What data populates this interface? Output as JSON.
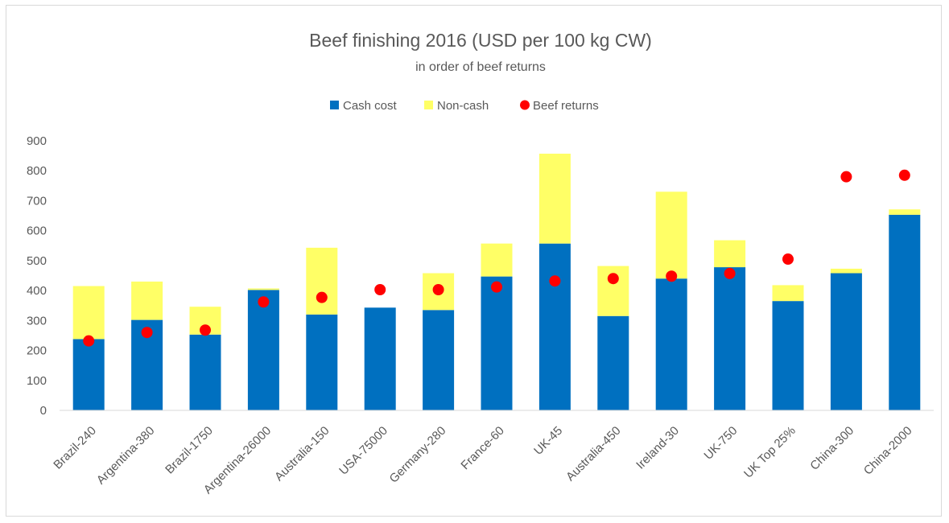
{
  "chart_data": {
    "type": "bar",
    "stacked": true,
    "title": "Beef finishing 2016 (USD per 100 kg CW)",
    "subtitle": "in order of beef returns",
    "categories": [
      "Brazil-240",
      "Argentina-380",
      "Brazil-1750",
      "Argentina-26000",
      "Australia-150",
      "USA-75000",
      "Germany-280",
      "France-60",
      "UK-45",
      "Australia-450",
      "Ireland-30",
      "UK-750",
      "UK Top 25%",
      "China-300",
      "China-2000"
    ],
    "series": [
      {
        "name": "Cash cost",
        "type": "bar",
        "color": "#0070c0",
        "values": [
          238,
          302,
          253,
          402,
          320,
          343,
          335,
          447,
          557,
          315,
          440,
          478,
          365,
          458,
          653
        ]
      },
      {
        "name": "Non-cash",
        "type": "bar",
        "color": "#ffff66",
        "values": [
          177,
          128,
          93,
          5,
          223,
          0,
          123,
          110,
          300,
          167,
          290,
          90,
          53,
          15,
          18
        ]
      },
      {
        "name": "Beef returns",
        "type": "scatter",
        "color": "#ff0000",
        "values": [
          232,
          260,
          268,
          362,
          377,
          403,
          403,
          412,
          432,
          440,
          448,
          457,
          505,
          780,
          785
        ]
      }
    ],
    "yticks": [
      "0",
      "100",
      "200",
      "300",
      "400",
      "500",
      "600",
      "700",
      "800",
      "900"
    ],
    "ylim": [
      0,
      900
    ],
    "legend_position": "top",
    "grid": false
  }
}
